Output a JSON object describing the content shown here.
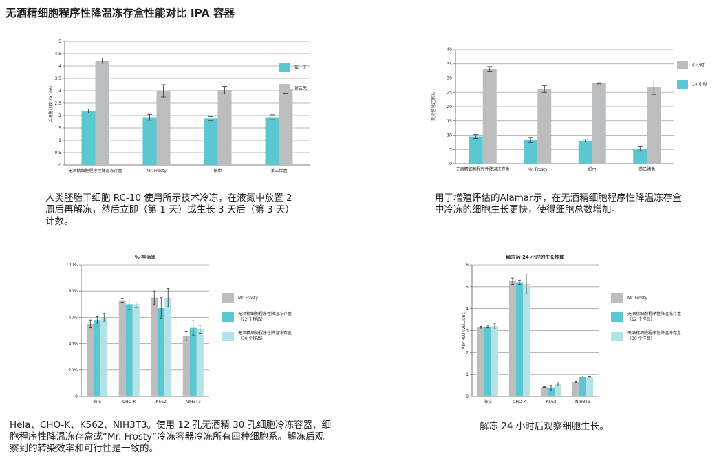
{
  "page": {
    "title": "无酒精细胞程序性降温冻存盒性能对比 IPA 容器"
  },
  "colors": {
    "gray": "#bcbdbf",
    "teal": "#5bc7d1",
    "lightTeal": "#b3e2e7",
    "grid": "#a0a0a0",
    "axis": "#555555"
  },
  "captions": [
    "人类胚胎干细胞 RC-10 使用所示技术冷冻，在液氮中放置 2 周后再解冻，然后立即（第 1 天）或生长 3 天后（第 3 天）计数。",
    "用于增殖评估的Alamar示，在无酒精细胞程序性降温冻存盒中冷冻的细胞生长更快，使得细胞总数增加。",
    "Hela、CHO-K、K562、NIH3T3。使用 12 孔无酒精 30 孔细胞冷冻容器、细胞程序性降温冻存盒或“Mr. Frosty”冷冻容器冷冻所有四种细胞系。解冻后观察到的转染效率和可行性是一致的。",
    "解冻 24 小时后观察细胞生长。"
  ],
  "chart_data": [
    {
      "type": "bar",
      "title": "",
      "ylabel": "活细胞计数（X106）",
      "ylim": [
        0,
        5
      ],
      "yticks": [
        "0",
        "0.5",
        "1",
        "1.5",
        "2",
        "2.5",
        "3",
        "3.5",
        "4",
        "4.5",
        "5"
      ],
      "categories": [
        "无酒精细胞程序性降温冻存盒",
        "Mr. Frosty",
        "纸巾",
        "苯乙烯盒"
      ],
      "legend": "right",
      "grid": true,
      "series": [
        {
          "name": "第一天",
          "color": "#5bc7d1",
          "values": [
            2.18,
            1.93,
            1.88,
            1.93
          ],
          "errors": [
            0.08,
            0.12,
            0.08,
            0.1
          ]
        },
        {
          "name": "第三天",
          "color": "#bcbdbf",
          "values": [
            4.22,
            3.0,
            3.03,
            3.08
          ],
          "errors": [
            0.1,
            0.25,
            0.15,
            0.18
          ]
        }
      ]
    },
    {
      "type": "bar",
      "title": "",
      "ylabel": "荧光信号还原%",
      "ylim": [
        0,
        40
      ],
      "yticks": [
        "0",
        "5",
        "10",
        "15",
        "20",
        "25",
        "30",
        "35",
        "40"
      ],
      "categories": [
        "无酒精细胞程序性降温冻存盒",
        "Mr. Frosty",
        "纸巾",
        "苯乙烯盒"
      ],
      "legend": "right",
      "grid": true,
      "series": [
        {
          "name": "24 小时",
          "color": "#5bc7d1",
          "values": [
            9.5,
            8.3,
            8.0,
            5.3
          ],
          "errors": [
            0.7,
            0.9,
            0.4,
            0.9
          ]
        },
        {
          "name": "6 小时",
          "color": "#bcbdbf",
          "values": [
            33.2,
            26.2,
            28.2,
            26.8
          ],
          "errors": [
            0.8,
            1.2,
            0.2,
            2.5
          ]
        }
      ],
      "legend_order": [
        1,
        0
      ]
    },
    {
      "type": "bar",
      "title": "% 存活率",
      "ylabel": "",
      "ylim": [
        0,
        100
      ],
      "yticks": [
        "0",
        "20%",
        "40%",
        "60%",
        "80%",
        "100%"
      ],
      "categories": [
        "海拉",
        "CHO-K",
        "K562",
        "NIH3T3"
      ],
      "legend": "right",
      "grid": true,
      "series": [
        {
          "name": "Mr. Frosty",
          "color": "#bcbdbf",
          "values": [
            55,
            73,
            75,
            46
          ],
          "errors": [
            3,
            1.5,
            5,
            3.5
          ]
        },
        {
          "name": "无酒精细胞程序性降温冻存盒\n（12 个样品）",
          "color": "#5bc7d1",
          "values": [
            58,
            70,
            67,
            52
          ],
          "errors": [
            2.5,
            4,
            8,
            5.5
          ]
        },
        {
          "name": "无酒精细胞程序性降温冻存盒\n（30 个样品）",
          "color": "#b3e2e7",
          "values": [
            60,
            70,
            75,
            51
          ],
          "errors": [
            3,
            2.5,
            7,
            3
          ]
        }
      ]
    },
    {
      "type": "bar",
      "title": "解冻后 24 小时的生长性能",
      "ylabel": "ATP RLU (ViaLight)",
      "ylim": [
        0,
        6
      ],
      "yticks": [
        "0",
        "1",
        "2",
        "3",
        "4",
        "5",
        "6"
      ],
      "categories": [
        "海拉",
        "CHO-K",
        "K562",
        "NIH3T3"
      ],
      "legend": "right",
      "grid": true,
      "series": [
        {
          "name": "Mr. Frosty",
          "color": "#bcbdbf",
          "values": [
            3.15,
            5.25,
            0.42,
            0.65
          ],
          "errors": [
            0.04,
            0.15,
            0.03,
            0.03
          ]
        },
        {
          "name": "无酒精细胞程序性降温冻存盒\n（12 个样品）",
          "color": "#5bc7d1",
          "values": [
            3.18,
            5.2,
            0.38,
            0.88
          ],
          "errors": [
            0.06,
            0.1,
            0.1,
            0.05
          ]
        },
        {
          "name": "无酒精细胞程序性降温冻存盒\n（30 个样品）",
          "color": "#b3e2e7",
          "values": [
            3.2,
            5.12,
            0.57,
            0.87
          ],
          "errors": [
            0.13,
            0.45,
            0.07,
            0.03
          ]
        }
      ]
    }
  ]
}
